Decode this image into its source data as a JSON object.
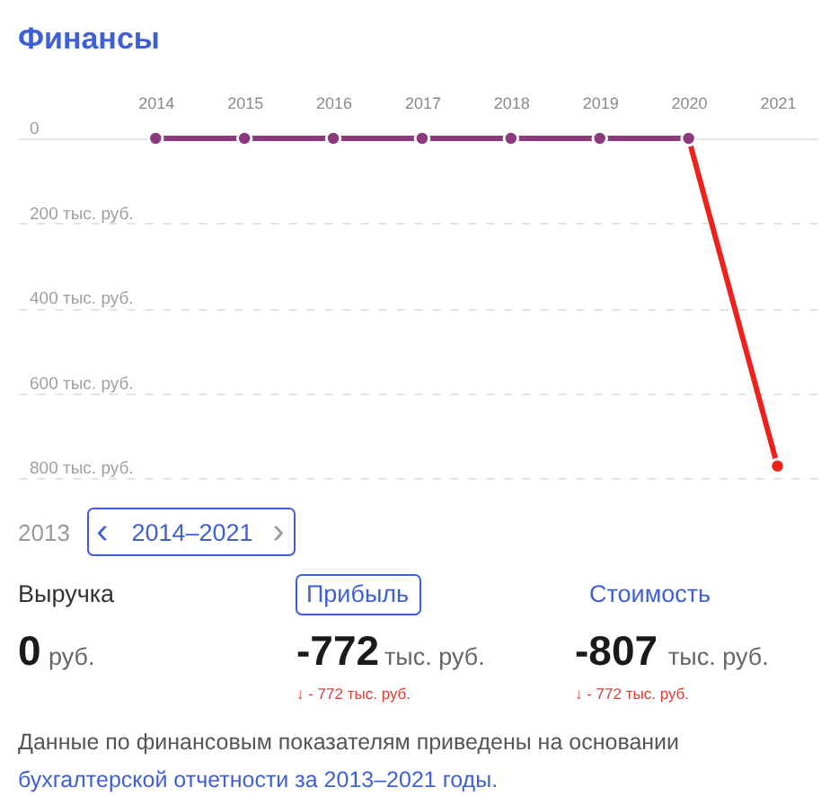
{
  "chart_data": {
    "type": "line",
    "title": "Финансы",
    "categories": [
      "2014",
      "2015",
      "2016",
      "2017",
      "2018",
      "2019",
      "2020",
      "2021"
    ],
    "series": [
      {
        "color": "#f0201c",
        "values": [
          null,
          null,
          null,
          null,
          null,
          null,
          0,
          -772
        ]
      },
      {
        "color": "#8b3a7e",
        "values": [
          0,
          0,
          0,
          0,
          0,
          0,
          0,
          null
        ]
      }
    ],
    "ylim": [
      -800,
      0
    ],
    "yticks": [
      0,
      {
        "value": -200,
        "label": "200 тыс. руб."
      },
      {
        "value": -400,
        "label": "400 тыс. руб."
      },
      {
        "value": -600,
        "label": "600 тыс. руб."
      },
      {
        "value": -800,
        "label": "800 тыс. руб."
      }
    ],
    "grid": "y",
    "marker": "circle",
    "line_style": "solid",
    "annotations": [
      "2013",
      "‹",
      "2014–2021",
      "›",
      "Выручка",
      "Прибыль",
      "Стоимость",
      "0",
      "руб.",
      "-772",
      "тыс. руб.",
      "-807",
      "тыс. руб.",
      "↓ - 772 тыс. руб.",
      "↓ - 772 тыс. руб.",
      "Данные по финансовым показателям приведены на основании",
      "бухгалтерской отчетности за 2013–2021 годы."
    ]
  }
}
